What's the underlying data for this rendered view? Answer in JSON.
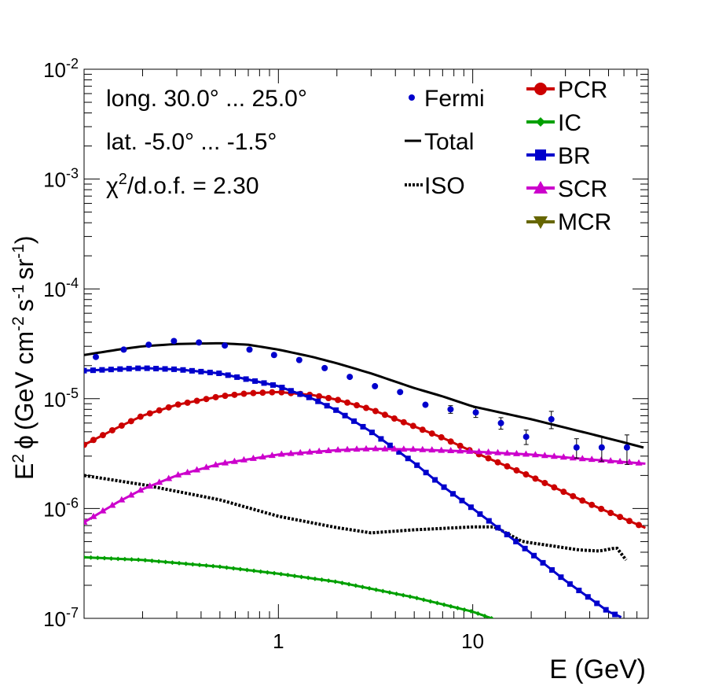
{
  "chart_data": {
    "type": "scatter",
    "title": "",
    "xlabel": "E (GeV)",
    "ylabel_parts": {
      "e": "E",
      "e_exp": "2",
      "phi": "ϕ",
      "open": "(GeV cm",
      "cm_exp": "-2",
      "s": "s",
      "s_exp": "-1",
      "sr": "sr",
      "sr_exp": "-1",
      "close": ")"
    },
    "x_scale": "log",
    "y_scale": "log",
    "xlim": [
      0.1,
      80
    ],
    "ylim": [
      1e-07,
      0.01
    ],
    "x_tick_labels": [
      {
        "value": 1,
        "label": "1"
      },
      {
        "value": 10,
        "label": "10"
      }
    ],
    "y_tick_labels": [
      {
        "value": 1e-07,
        "base": "10",
        "exp": "-7"
      },
      {
        "value": 1e-06,
        "base": "10",
        "exp": "-6"
      },
      {
        "value": 1e-05,
        "base": "10",
        "exp": "-5"
      },
      {
        "value": 0.0001,
        "base": "10",
        "exp": "-4"
      },
      {
        "value": 0.001,
        "base": "10",
        "exp": "-3"
      },
      {
        "value": 0.01,
        "base": "10",
        "exp": "-2"
      }
    ],
    "info": {
      "longitude": "long. 30.0° ... 25.0°",
      "latitude": "lat. -5.0° ... -1.5°",
      "chi_prefix": "χ",
      "chi_exp": "2",
      "chi_suffix": "/d.o.f. = 2.30"
    },
    "legend": [
      {
        "name": "Fermi",
        "marker": "dot",
        "color": "#0000cc"
      },
      {
        "name": "Total",
        "marker": "line",
        "color": "#000000"
      },
      {
        "name": "ISO",
        "marker": "dotted",
        "color": "#000000"
      },
      {
        "name": "PCR",
        "marker": "circle",
        "color": "#cc0000"
      },
      {
        "name": "IC",
        "marker": "diamond",
        "color": "#00a000"
      },
      {
        "name": "BR",
        "marker": "square",
        "color": "#0000cc"
      },
      {
        "name": "SCR",
        "marker": "triangle-up",
        "color": "#cc00cc"
      },
      {
        "name": "MCR",
        "marker": "triangle-down",
        "color": "#666600"
      }
    ],
    "fermi": {
      "x": [
        0.115,
        0.16,
        0.215,
        0.29,
        0.39,
        0.53,
        0.71,
        0.95,
        1.28,
        1.73,
        2.33,
        3.14,
        4.23,
        5.71,
        7.69,
        10.37,
        13.97,
        18.84,
        25.39,
        34.22,
        46.13,
        62.18
      ],
      "y": [
        2.4e-05,
        2.8e-05,
        3.1e-05,
        3.35e-05,
        3.25e-05,
        3.05e-05,
        2.8e-05,
        2.5e-05,
        2.25e-05,
        1.9e-05,
        1.58e-05,
        1.3e-05,
        1.15e-05,
        8.8e-06,
        8e-06,
        7.5e-06,
        6e-06,
        4.5e-06,
        6.5e-06,
        3.6e-06,
        3.6e-06,
        3.6e-06
      ],
      "yerr_rel": [
        0.03,
        0.03,
        0.03,
        0.03,
        0.03,
        0.03,
        0.03,
        0.03,
        0.03,
        0.03,
        0.03,
        0.04,
        0.05,
        0.06,
        0.08,
        0.1,
        0.12,
        0.15,
        0.18,
        0.2,
        0.25,
        0.3
      ]
    },
    "series": [
      {
        "name": "Total",
        "style": "line",
        "color": "#000000",
        "x": [
          0.1,
          0.15,
          0.2,
          0.3,
          0.5,
          0.7,
          1.0,
          1.5,
          2.0,
          3.0,
          5.0,
          7.0,
          10.0,
          20.0,
          40.0,
          60.0,
          80.0
        ],
        "y": [
          2.5e-05,
          2.8e-05,
          3e-05,
          3.15e-05,
          3.2e-05,
          3.1e-05,
          2.8e-05,
          2.4e-05,
          2.1e-05,
          1.7e-05,
          1.25e-05,
          1.05e-05,
          8.5e-06,
          6.5e-06,
          4.8e-06,
          4e-06,
          3.5e-06
        ]
      },
      {
        "name": "ISO",
        "style": "dotted",
        "color": "#000000",
        "x": [
          0.1,
          0.2,
          0.5,
          1.0,
          2.0,
          3.0,
          5.0,
          10.0,
          13.0,
          18.0,
          25.0,
          35.0,
          45.0,
          55.0,
          65.0
        ],
        "y": [
          2e-06,
          1.65e-06,
          1.2e-06,
          8.5e-07,
          6.7e-07,
          6e-07,
          6.4e-07,
          6.8e-07,
          6.8e-07,
          5e-07,
          4.6e-07,
          4.2e-07,
          4.1e-07,
          4.4e-07,
          3e-07
        ]
      },
      {
        "name": "PCR",
        "style": "circle",
        "color": "#cc0000",
        "x": [
          0.1,
          0.15,
          0.2,
          0.3,
          0.5,
          0.7,
          1.0,
          1.5,
          2.0,
          3.0,
          5.0,
          7.0,
          10.0,
          20.0,
          40.0,
          80.0
        ],
        "y": [
          3.8e-06,
          5.5e-06,
          7e-06,
          8.8e-06,
          1.05e-05,
          1.12e-05,
          1.15e-05,
          1.08e-05,
          9.8e-06,
          8e-06,
          5.6e-06,
          4.4e-06,
          3.3e-06,
          1.95e-06,
          1.1e-06,
          6.5e-07
        ]
      },
      {
        "name": "IC",
        "style": "diamond",
        "color": "#00a000",
        "x": [
          0.1,
          0.2,
          0.5,
          1.0,
          2.0,
          5.0,
          10.0,
          12.5
        ],
        "y": [
          3.6e-07,
          3.4e-07,
          2.95e-07,
          2.55e-07,
          2.15e-07,
          1.55e-07,
          1.15e-07,
          1e-07
        ]
      },
      {
        "name": "BR",
        "style": "square",
        "color": "#0000cc",
        "x": [
          0.1,
          0.2,
          0.3,
          0.5,
          1.0,
          1.5,
          2.0,
          3.0,
          5.0,
          7.0,
          10.0,
          15.0,
          20.0,
          30.0,
          50.0,
          60.0
        ],
        "y": [
          1.8e-05,
          1.9e-05,
          1.85e-05,
          1.7e-05,
          1.3e-05,
          1e-05,
          7.8e-06,
          5e-06,
          2.6e-06,
          1.6e-06,
          1e-06,
          5.8e-07,
          3.9e-07,
          2.2e-07,
          1.15e-07,
          1e-07
        ]
      },
      {
        "name": "SCR",
        "style": "triangle-up",
        "color": "#cc00cc",
        "x": [
          0.1,
          0.15,
          0.2,
          0.3,
          0.5,
          1.0,
          2.0,
          3.0,
          5.0,
          10.0,
          20.0,
          40.0,
          80.0
        ],
        "y": [
          7.5e-07,
          1.15e-06,
          1.5e-06,
          2e-06,
          2.55e-06,
          3.1e-06,
          3.4e-06,
          3.5e-06,
          3.45e-06,
          3.3e-06,
          3.1e-06,
          2.8e-06,
          2.55e-06
        ]
      },
      {
        "name": "MCR",
        "style": "triangle-down",
        "color": "#666600",
        "x": [],
        "y": []
      }
    ]
  }
}
